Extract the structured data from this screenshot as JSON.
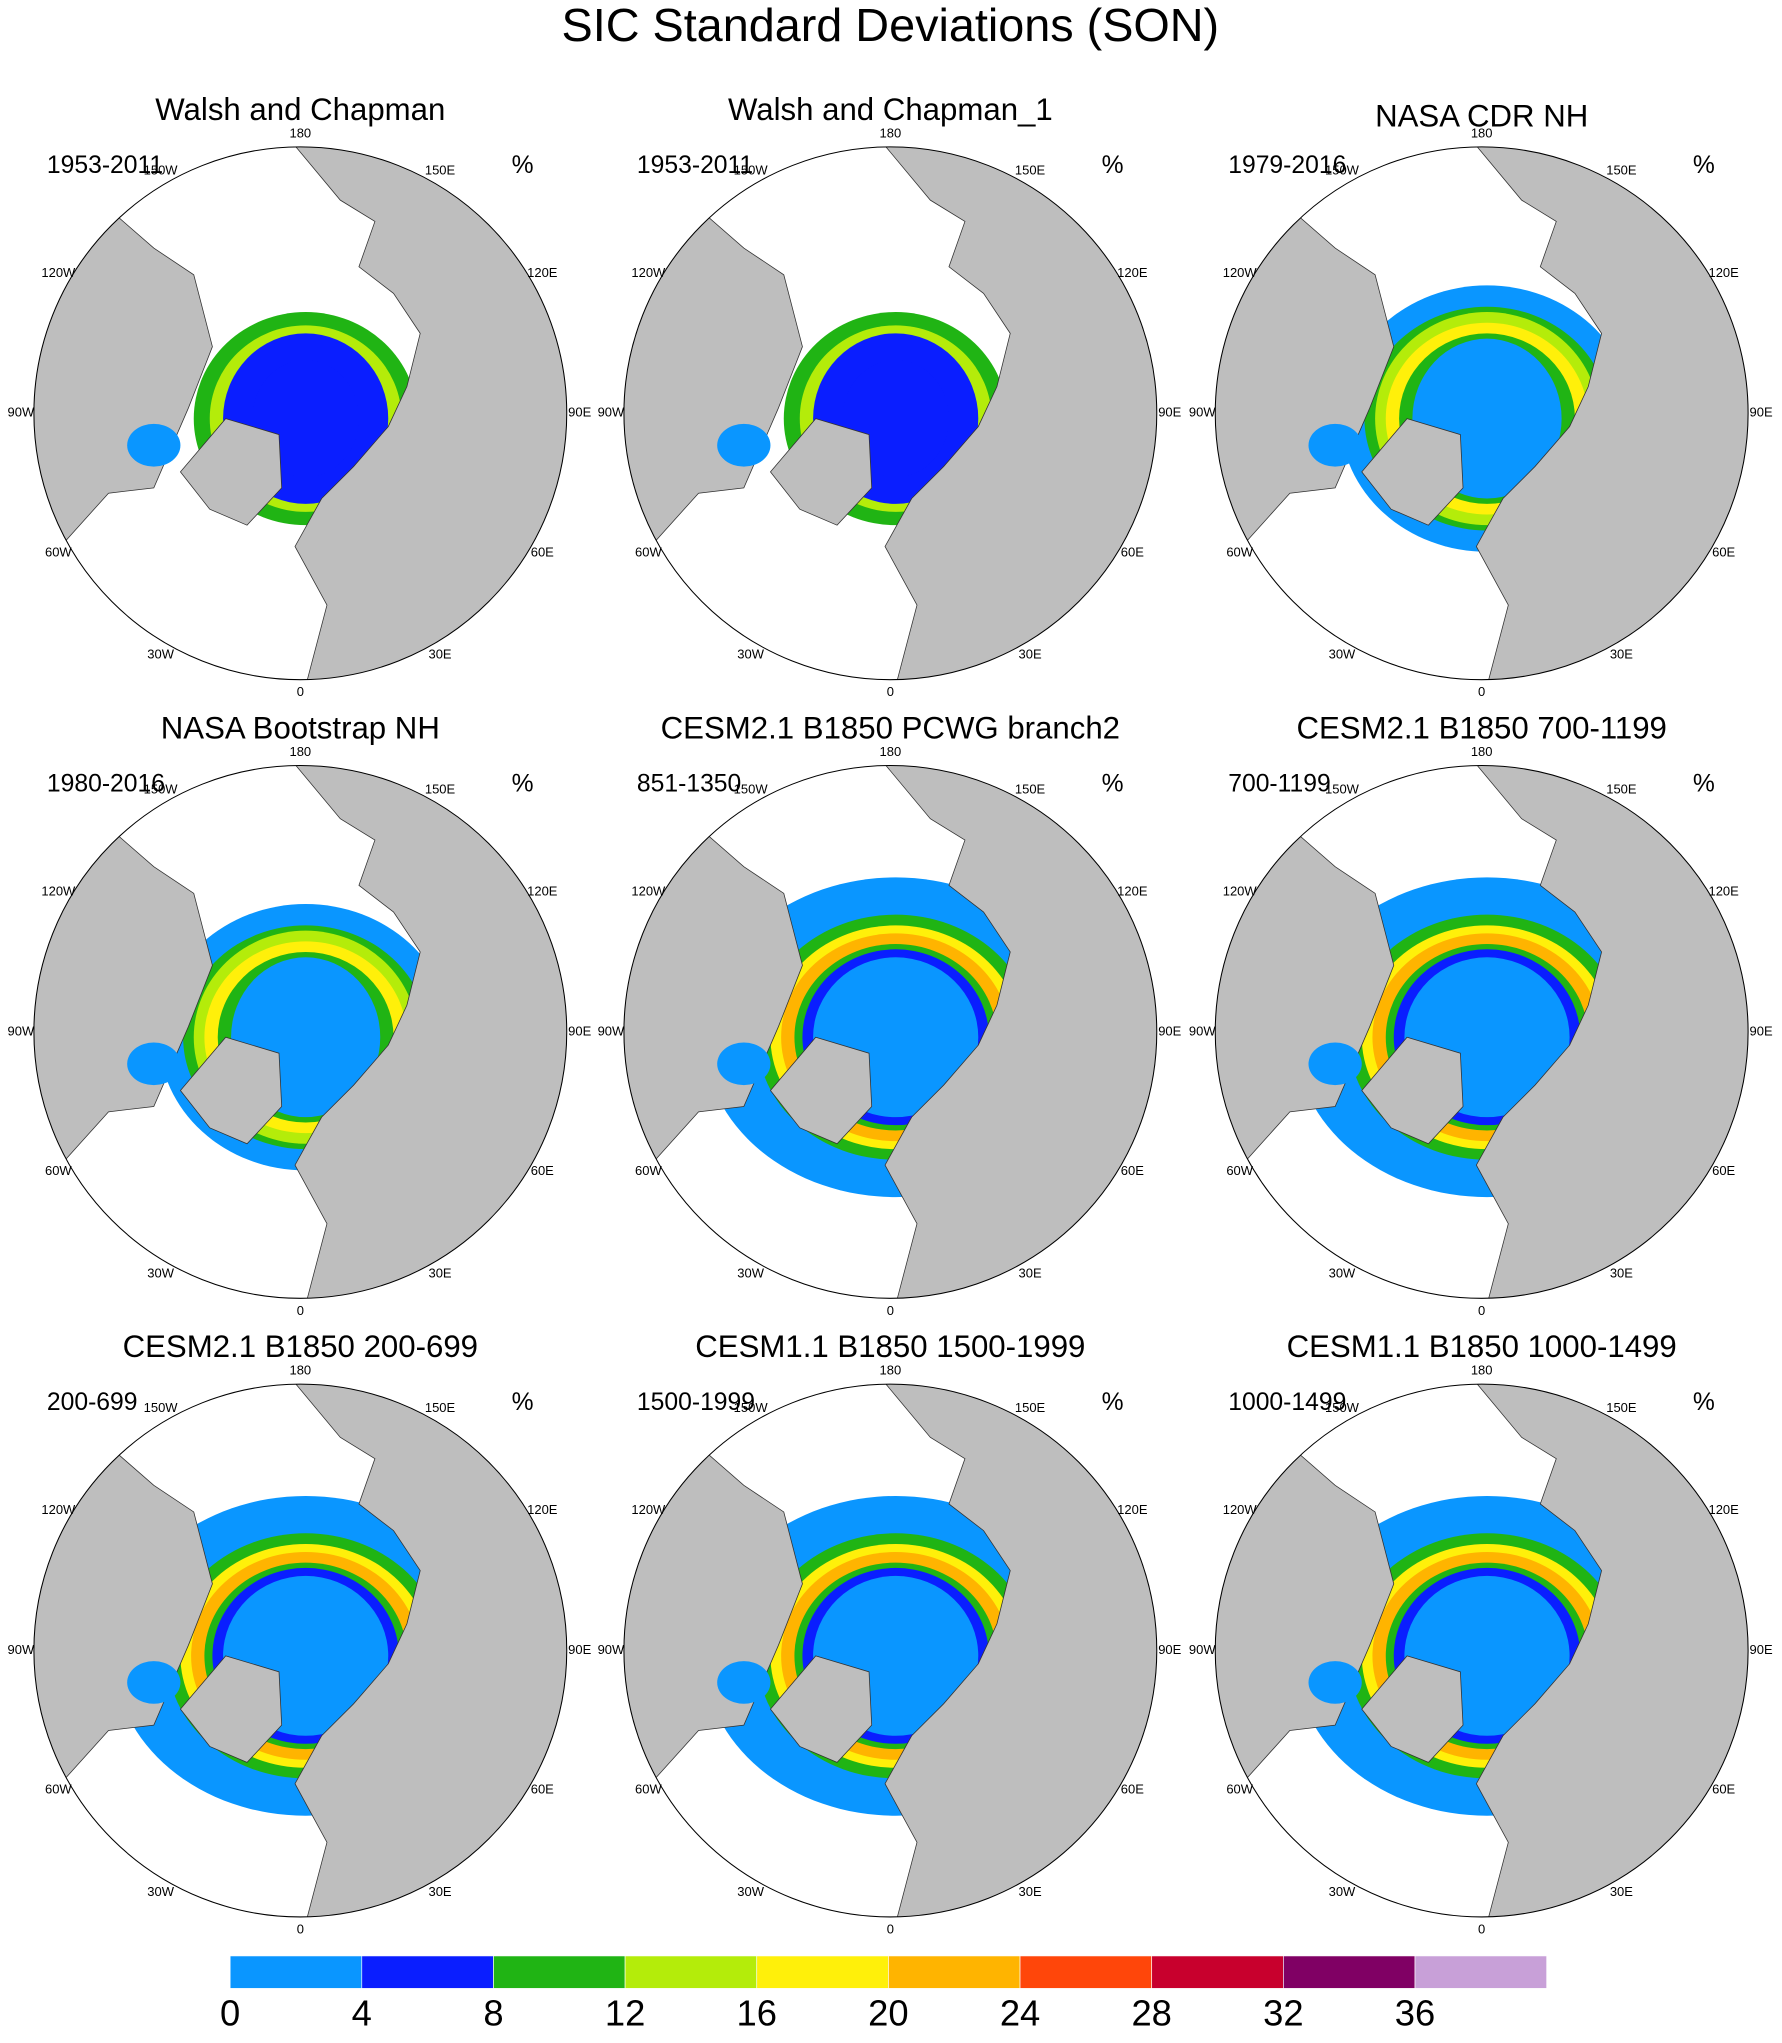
{
  "title": "SIC Standard Deviations (SON)",
  "panels": [
    {
      "title": "Walsh and Chapman",
      "period": "1953-2011",
      "unit": "%"
    },
    {
      "title": "Walsh and Chapman_1",
      "period": "1953-2011",
      "unit": "%"
    },
    {
      "title": "NASA CDR NH",
      "period": "1979-2016",
      "unit": "%"
    },
    {
      "title": "NASA Bootstrap NH",
      "period": "1980-2016",
      "unit": "%"
    },
    {
      "title": "CESM2.1 B1850 PCWG branch2",
      "period": "851-1350",
      "unit": "%"
    },
    {
      "title": "CESM2.1 B1850 700-1199",
      "period": "700-1199",
      "unit": "%"
    },
    {
      "title": "CESM2.1 B1850 200-699",
      "period": "200-699",
      "unit": "%"
    },
    {
      "title": "CESM1.1 B1850 1500-1999",
      "period": "1500-1999",
      "unit": "%"
    },
    {
      "title": "CESM1.1 B1850 1000-1499",
      "period": "1000-1499",
      "unit": "%"
    }
  ],
  "lon_labels": [
    "180",
    "150E",
    "120E",
    "90E",
    "60E",
    "30E",
    "0",
    "30W",
    "60W",
    "90W",
    "120W",
    "150W"
  ],
  "colorbar": {
    "colors": [
      "#0a96ff",
      "#0a1eff",
      "#20b414",
      "#b4ec0a",
      "#fff00a",
      "#ffb400",
      "#ff460a",
      "#c8002d",
      "#800064",
      "#c8a0d8"
    ],
    "ticks": [
      0,
      4,
      8,
      12,
      16,
      20,
      24,
      28,
      32,
      36
    ]
  }
}
